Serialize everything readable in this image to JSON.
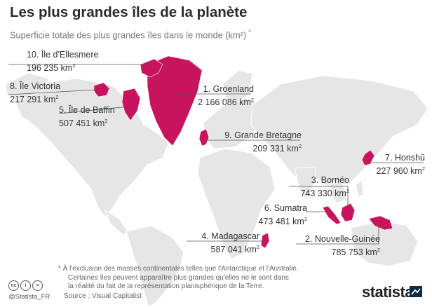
{
  "header": {
    "title": "Les plus grandes îles de la planète",
    "subtitle": "Superficie totale des plus grandes îles dans le monde (km²)",
    "subtitle_marker": "*"
  },
  "colors": {
    "island": "#c8145d",
    "land": "#e8e8e8",
    "leader": "#555555"
  },
  "islands": [
    {
      "rank_name": "1. Groenland",
      "area": "2 166 086 km",
      "unit_sup": "2"
    },
    {
      "rank_name": "2. Nouvelle-Guinée",
      "area": "785 753 km",
      "unit_sup": "2"
    },
    {
      "rank_name": "3. Bornéo",
      "area": "743 330 km",
      "unit_sup": "2"
    },
    {
      "rank_name": "4. Madagascar",
      "area": "587 041 km",
      "unit_sup": "2"
    },
    {
      "rank_name": "5. Île de Baffin",
      "area": "507 451 km",
      "unit_sup": "2"
    },
    {
      "rank_name": "6. Sumatra",
      "area": "473 481 km",
      "unit_sup": "2"
    },
    {
      "rank_name": "7. Honshū",
      "area": "227 960 km",
      "unit_sup": "2"
    },
    {
      "rank_name": "8. Île Victoria",
      "area": "217 291 km",
      "unit_sup": "2"
    },
    {
      "rank_name": "9. Grande Bretagne",
      "area": "209 331 km",
      "unit_sup": "2"
    },
    {
      "rank_name": "10. Île d'Ellesmere",
      "area": "196 235 km",
      "unit_sup": "2"
    }
  ],
  "footnote": {
    "line1": "* À l'exclusion des masses continentales telles que l'Antarctique et l'Australie.",
    "line2": "Certaines îles peuvent apparaître plus grandes qu'elles ne le sont dans",
    "line3": "la réalité du fait de la représentation planisphérique de la Terre."
  },
  "source": "Source : Visual Capitalist",
  "footer": {
    "handle": "@Statista_FR",
    "license_icons": [
      "cc-icon",
      "by-icon",
      "nd-icon"
    ],
    "license_glyphs": [
      "cc",
      "i",
      "="
    ],
    "brand": "statista"
  }
}
